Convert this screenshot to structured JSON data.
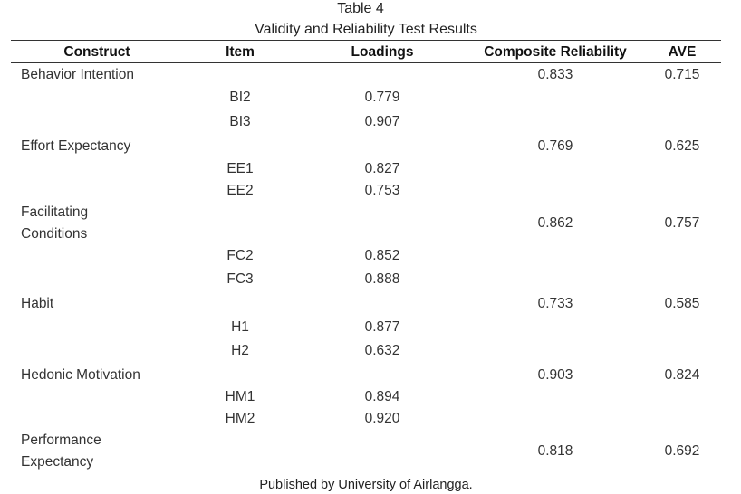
{
  "table_number": "Table 4",
  "table_title": "Validity and Reliability Test Results",
  "headers": {
    "construct": "Construct",
    "item": "Item",
    "loadings": "Loadings",
    "composite_reliability": "Composite Reliability",
    "ave": "AVE"
  },
  "rows": [
    {
      "construct_lines": [
        "Behavior Intention"
      ],
      "composite_reliability": "0.833",
      "ave": "0.715",
      "items": [
        {
          "item": "BI2",
          "loading": "0.779"
        },
        {
          "item": "BI3",
          "loading": "0.907"
        }
      ]
    },
    {
      "construct_lines": [
        "Effort Expectancy"
      ],
      "composite_reliability": "0.769",
      "ave": "0.625",
      "items": [
        {
          "item": "EE1",
          "loading": "0.827"
        },
        {
          "item": "EE2",
          "loading": "0.753"
        }
      ]
    },
    {
      "construct_lines": [
        "Facilitating",
        "Conditions"
      ],
      "composite_reliability": "0.862",
      "ave": "0.757",
      "items": [
        {
          "item": "FC2",
          "loading": "0.852"
        },
        {
          "item": "FC3",
          "loading": "0.888"
        }
      ]
    },
    {
      "construct_lines": [
        "Habit"
      ],
      "composite_reliability": "0.733",
      "ave": "0.585",
      "items": [
        {
          "item": "H1",
          "loading": "0.877"
        },
        {
          "item": "H2",
          "loading": "0.632"
        }
      ]
    },
    {
      "construct_lines": [
        "Hedonic Motivation"
      ],
      "composite_reliability": "0.903",
      "ave": "0.824",
      "items": [
        {
          "item": "HM1",
          "loading": "0.894"
        },
        {
          "item": "HM2",
          "loading": "0.920"
        }
      ]
    },
    {
      "construct_lines": [
        "Performance",
        "Expectancy"
      ],
      "composite_reliability": "0.818",
      "ave": "0.692",
      "items": []
    }
  ],
  "footer": "Published by University of Airlangga."
}
